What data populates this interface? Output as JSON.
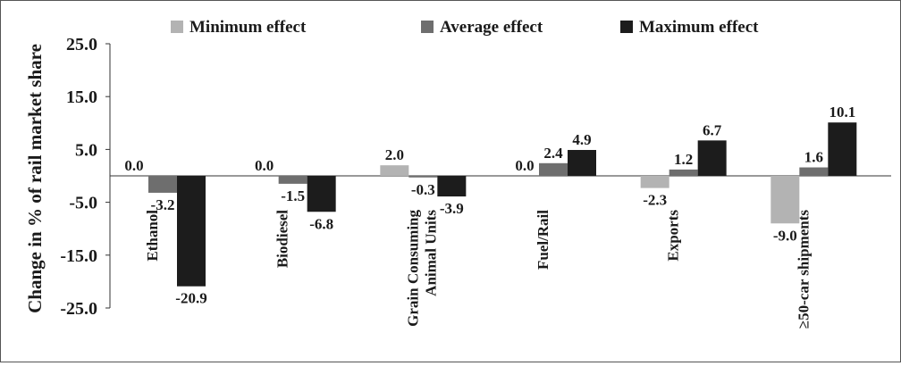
{
  "chart_data": {
    "type": "bar",
    "ylabel": "Change in % of rail market share",
    "ylim": [
      -25,
      25
    ],
    "yticks": [
      25,
      15,
      5,
      -5,
      -15,
      -25
    ],
    "ytick_labels": [
      "25.0",
      "15.0",
      "5.0",
      "-5.0",
      "-15.0",
      "-25.0"
    ],
    "legend_position": "top",
    "categories": [
      [
        "Ethanol"
      ],
      [
        "Biodiesel"
      ],
      [
        "Grain Consuming",
        "Animal Units"
      ],
      [
        "Fuel/Rail"
      ],
      [
        "Exports"
      ],
      [
        "≥50-car shipments"
      ]
    ],
    "series": [
      {
        "name": "Minimum effect",
        "color": "#b3b3b3",
        "values": [
          0.0,
          0.0,
          2.0,
          0.0,
          -2.3,
          -9.0
        ],
        "labels": [
          "0.0",
          "0.0",
          "2.0",
          "0.0",
          "-2.3",
          "-9.0"
        ]
      },
      {
        "name": "Average effect",
        "color": "#6e6e6e",
        "values": [
          -3.2,
          -1.5,
          -0.3,
          2.4,
          1.2,
          1.6
        ],
        "labels": [
          "-3.2",
          "-1.5",
          "-0.3",
          "2.4",
          "1.2",
          "1.6"
        ]
      },
      {
        "name": "Maximum effect",
        "color": "#1c1c1c",
        "values": [
          -20.9,
          -6.8,
          -3.9,
          4.9,
          6.7,
          10.1
        ],
        "labels": [
          "-20.9",
          "-6.8",
          "-3.9",
          "4.9",
          "6.7",
          "10.1"
        ]
      }
    ],
    "grid": false
  }
}
